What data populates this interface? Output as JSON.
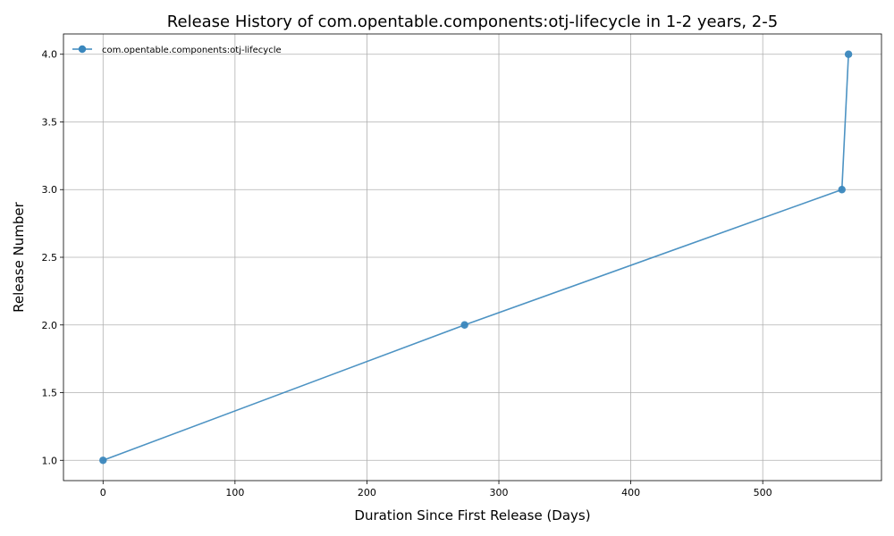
{
  "chart_data": {
    "type": "line",
    "title": "Release History of com.opentable.components:otj-lifecycle in 1-2 years, 2-5",
    "xlabel": "Duration Since First Release (Days)",
    "ylabel": "Release Number",
    "xlim": [
      -30,
      590
    ],
    "ylim": [
      0.85,
      4.15
    ],
    "xticks": [
      0,
      100,
      200,
      300,
      400,
      500
    ],
    "yticks": [
      1.0,
      1.5,
      2.0,
      2.5,
      3.0,
      3.5,
      4.0
    ],
    "xtick_labels": [
      "0",
      "100",
      "200",
      "300",
      "400",
      "500"
    ],
    "ytick_labels": [
      "1.0",
      "1.5",
      "2.0",
      "2.5",
      "3.0",
      "3.5",
      "4.0"
    ],
    "grid": true,
    "legend_position": "top-left",
    "series": [
      {
        "name": "com.opentable.components:otj-lifecycle",
        "color": "#3a87bd",
        "marker": "circle",
        "x": [
          0,
          274,
          560,
          565
        ],
        "y": [
          1,
          2,
          3,
          4
        ]
      }
    ]
  }
}
